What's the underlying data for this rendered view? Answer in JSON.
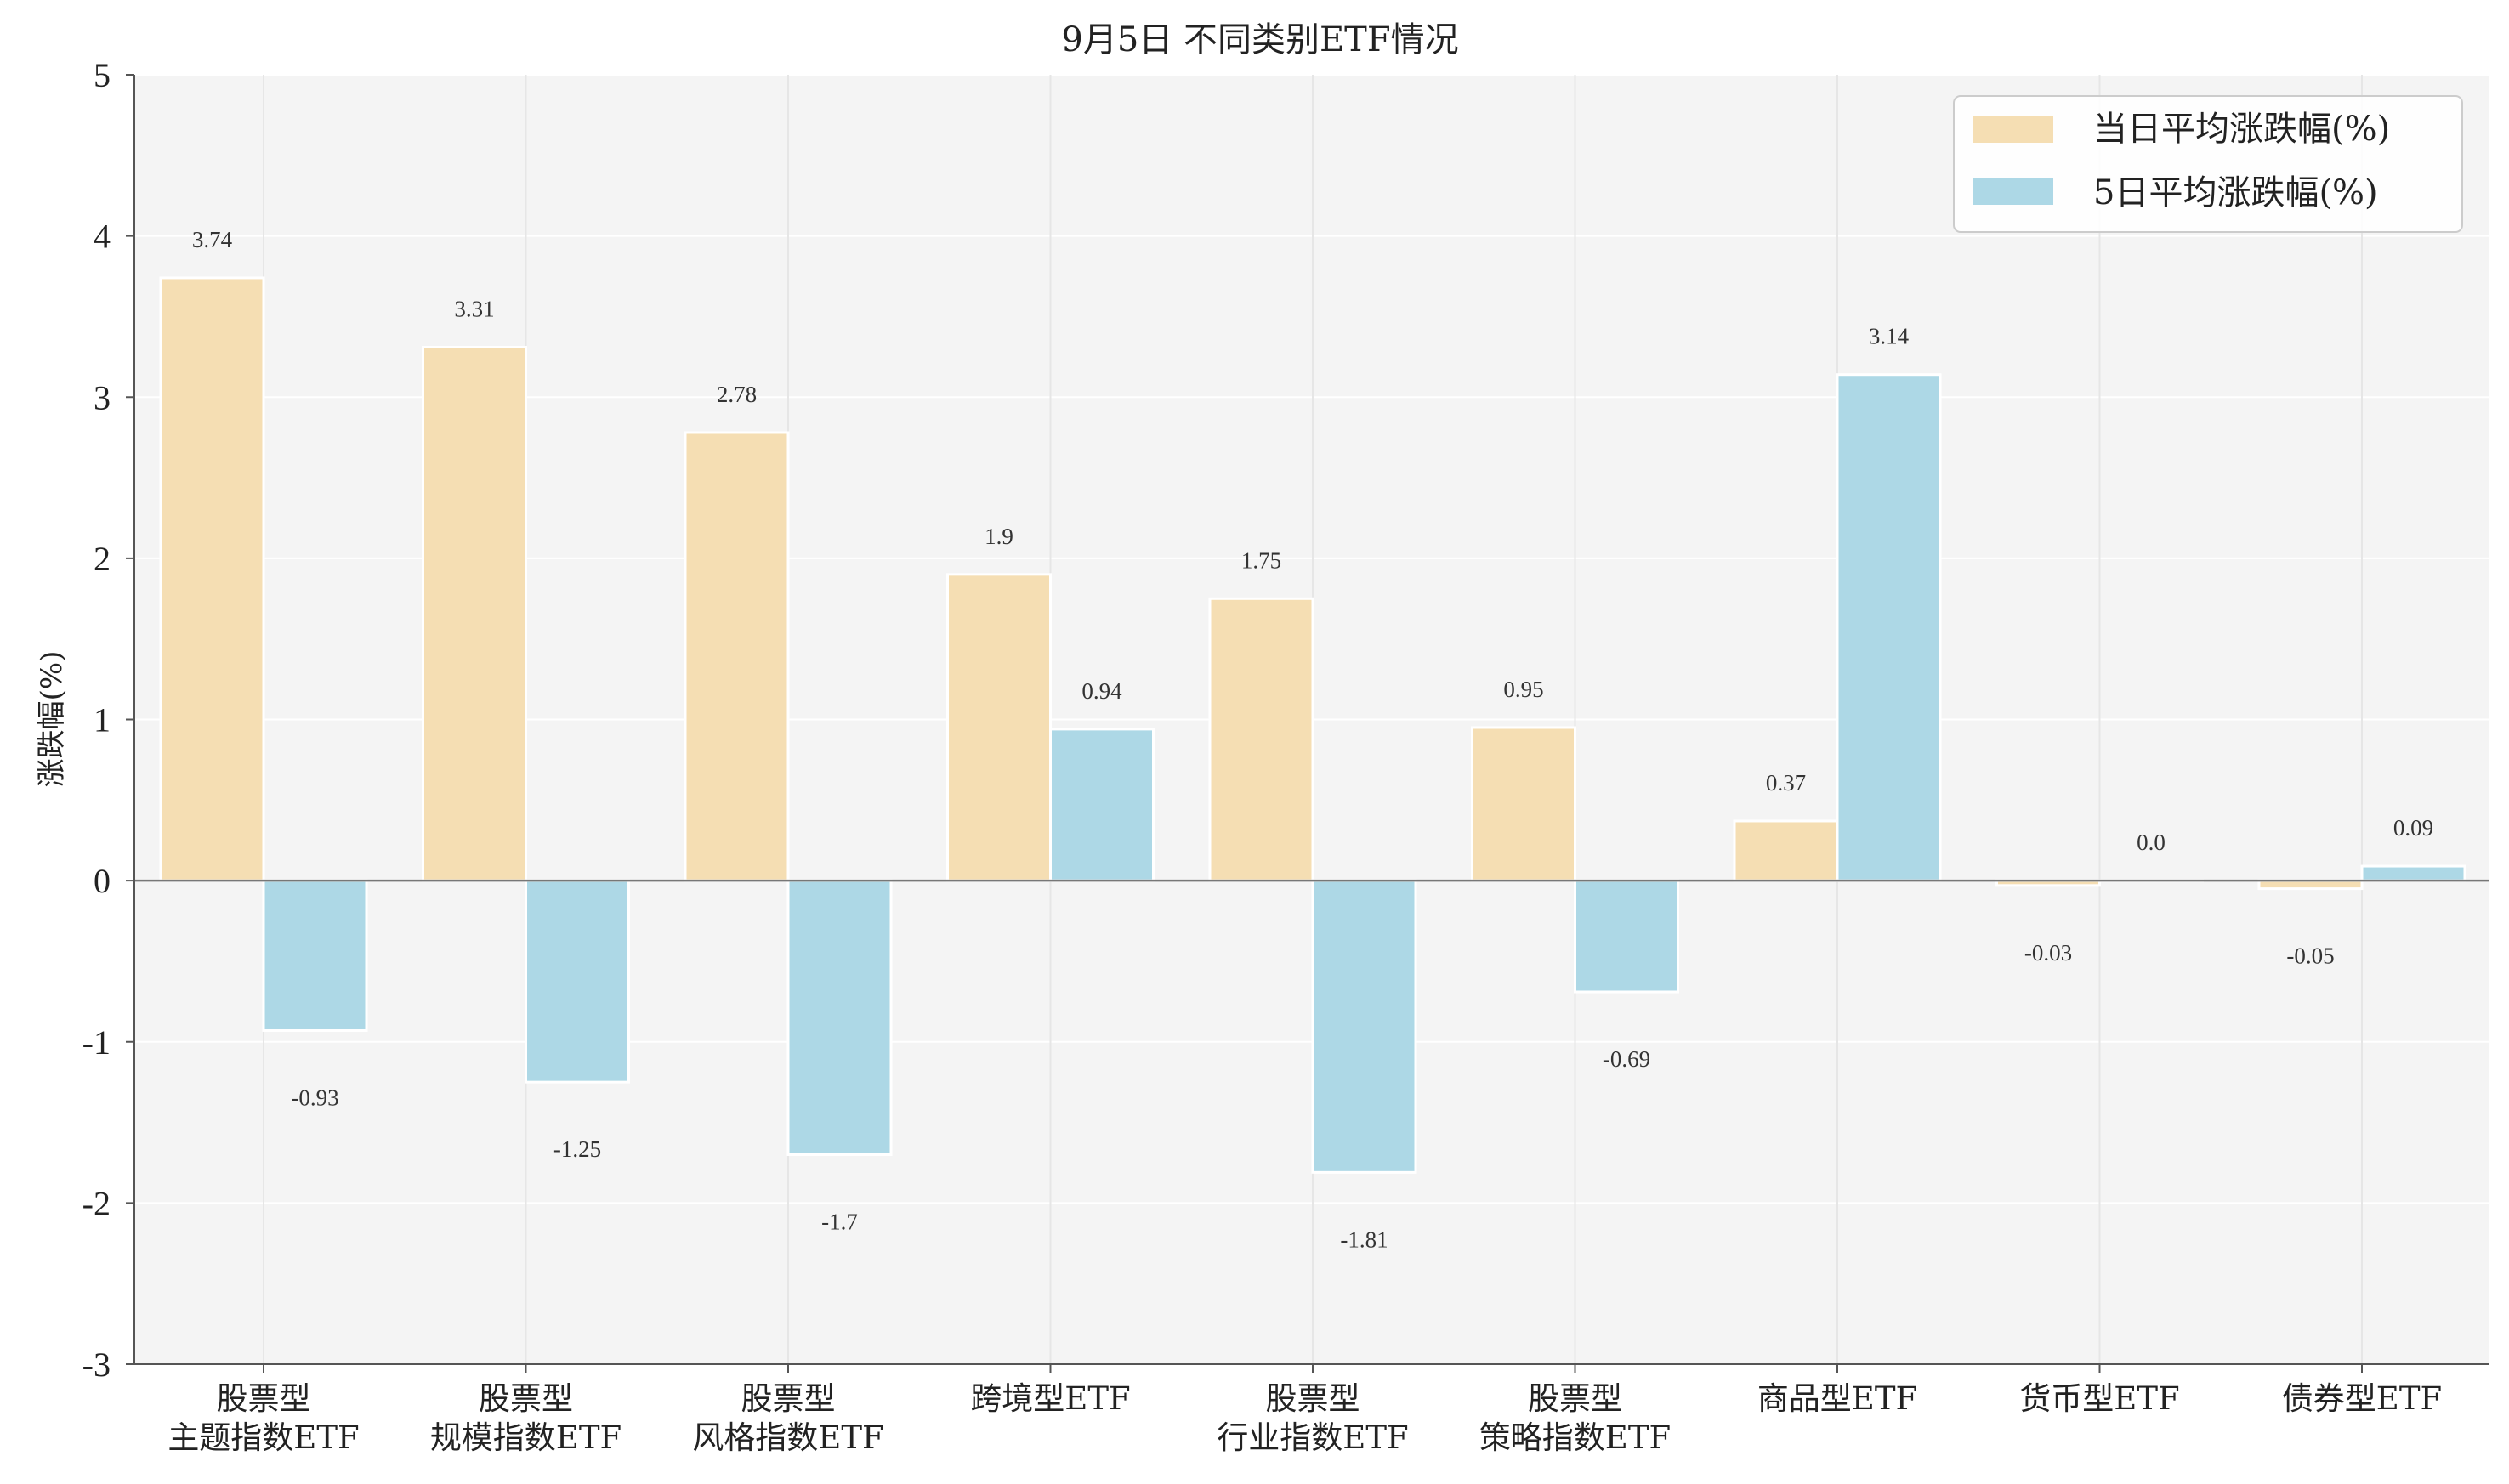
{
  "chart_data": {
    "type": "bar",
    "title": "9月5日 不同类别ETF情况",
    "xlabel": "",
    "ylabel": "涨跌幅(%)",
    "ylim": [
      -3,
      5
    ],
    "yticks": [
      -3,
      -2,
      -1,
      0,
      1,
      2,
      3,
      4,
      5
    ],
    "ytick_labels": [
      "-3",
      "-2",
      "-1",
      "0",
      "1",
      "2",
      "3",
      "4",
      "5"
    ],
    "categories": [
      [
        "股票型",
        "主题指数ETF"
      ],
      [
        "股票型",
        "规模指数ETF"
      ],
      [
        "股票型",
        "风格指数ETF"
      ],
      [
        "跨境型ETF"
      ],
      [
        "股票型",
        "行业指数ETF"
      ],
      [
        "股票型",
        "策略指数ETF"
      ],
      [
        "商品型ETF"
      ],
      [
        "货币型ETF"
      ],
      [
        "债券型ETF"
      ]
    ],
    "series": [
      {
        "name": "当日平均涨跌幅(%)",
        "color": "#f5deb3",
        "values": [
          3.74,
          3.31,
          2.78,
          1.9,
          1.75,
          0.95,
          0.37,
          -0.03,
          -0.05
        ],
        "labels": [
          "3.74",
          "3.31",
          "2.78",
          "1.9",
          "1.75",
          "0.95",
          "0.37",
          "-0.03",
          "-0.05"
        ]
      },
      {
        "name": "5日平均涨跌幅(%)",
        "color": "#add8e6",
        "values": [
          -0.93,
          -1.25,
          -1.7,
          0.94,
          -1.81,
          -0.69,
          3.14,
          0.0,
          0.09
        ],
        "labels": [
          "-0.93",
          "-1.25",
          "-1.7",
          "0.94",
          "-1.81",
          "-0.69",
          "3.14",
          "0.0",
          "0.09"
        ]
      }
    ],
    "grid": true,
    "legend_position": "top-right"
  }
}
